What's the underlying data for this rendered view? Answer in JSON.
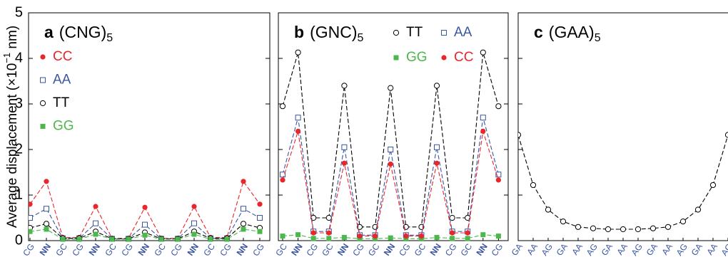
{
  "chart_data": [
    {
      "type": "line",
      "panel": "a",
      "title": "(CNG)",
      "title_sub": "5",
      "ylabel": "Average displacement (×10",
      "ylabel_sup": "−1",
      "ylabel_end": " nm)",
      "categories": [
        "CG",
        "NN",
        "GC",
        "CG",
        "NN",
        "GC",
        "CG",
        "NN",
        "GC",
        "CG",
        "NN",
        "GC",
        "CG",
        "NN",
        "CG"
      ],
      "ylim": [
        0,
        5
      ],
      "yticks": [
        0,
        1,
        2,
        3,
        4,
        5
      ],
      "series": [
        {
          "name": "CC",
          "color": "#e8262b",
          "marker": "circle-filled",
          "values": [
            0.8,
            1.3,
            0.07,
            0.07,
            0.75,
            0.05,
            0.05,
            0.73,
            0.05,
            0.05,
            0.75,
            0.07,
            0.07,
            1.3,
            0.8
          ]
        },
        {
          "name": "AA",
          "color": "#3a55a4",
          "marker": "square-open",
          "values": [
            0.5,
            0.7,
            0.05,
            0.05,
            0.38,
            0.04,
            0.04,
            0.35,
            0.04,
            0.04,
            0.38,
            0.05,
            0.05,
            0.7,
            0.5
          ]
        },
        {
          "name": "TT",
          "color": "#000000",
          "marker": "circle-open",
          "values": [
            0.28,
            0.37,
            0.05,
            0.05,
            0.2,
            0.04,
            0.04,
            0.18,
            0.04,
            0.04,
            0.2,
            0.05,
            0.05,
            0.37,
            0.28
          ]
        },
        {
          "name": "GG",
          "color": "#4cb84c",
          "marker": "square-filled",
          "values": [
            0.2,
            0.25,
            0.03,
            0.03,
            0.14,
            0.03,
            0.03,
            0.12,
            0.03,
            0.03,
            0.14,
            0.03,
            0.03,
            0.25,
            0.2
          ]
        }
      ]
    },
    {
      "type": "line",
      "panel": "b",
      "title": "(GNC)",
      "title_sub": "5",
      "categories": [
        "GC",
        "NN",
        "CG",
        "GC",
        "NN",
        "CG",
        "GC",
        "NN",
        "CG",
        "GC",
        "NN",
        "CG",
        "GC",
        "NN",
        "CG"
      ],
      "ylim": [
        0,
        5
      ],
      "yticks": [
        0,
        1,
        2,
        3,
        4,
        5
      ],
      "series": [
        {
          "name": "TT",
          "color": "#000000",
          "marker": "circle-open",
          "values": [
            2.95,
            4.13,
            0.5,
            0.5,
            3.4,
            0.3,
            0.3,
            3.35,
            0.3,
            0.3,
            3.4,
            0.5,
            0.5,
            4.13,
            2.95
          ]
        },
        {
          "name": "AA",
          "color": "#3a55a4",
          "marker": "square-open",
          "values": [
            1.45,
            2.7,
            0.2,
            0.2,
            2.05,
            0.12,
            0.12,
            2.0,
            0.12,
            0.12,
            2.05,
            0.2,
            0.2,
            2.7,
            1.45
          ]
        },
        {
          "name": "GG",
          "color": "#4cb84c",
          "marker": "square-filled",
          "values": [
            0.1,
            0.13,
            0.05,
            0.05,
            0.07,
            0.04,
            0.04,
            0.06,
            0.04,
            0.04,
            0.07,
            0.05,
            0.05,
            0.13,
            0.1
          ]
        },
        {
          "name": "CC",
          "color": "#e8262b",
          "marker": "circle-filled",
          "values": [
            1.33,
            2.4,
            0.17,
            0.17,
            1.7,
            0.1,
            0.1,
            1.68,
            0.1,
            0.1,
            1.7,
            0.17,
            0.17,
            2.4,
            1.33
          ]
        }
      ]
    },
    {
      "type": "line",
      "panel": "c",
      "title": "(GAA)",
      "title_sub": "5",
      "categories": [
        "GA",
        "AA",
        "AG",
        "GA",
        "AA",
        "AG",
        "GA",
        "AA",
        "AG",
        "GA",
        "AA",
        "AG",
        "GA",
        "AA",
        "AG"
      ],
      "ylim": [
        0,
        5
      ],
      "yticks": [
        0,
        1,
        2,
        3,
        4,
        5
      ],
      "series": [
        {
          "color": "#000000",
          "marker": "circle-open",
          "values": [
            2.32,
            1.22,
            0.68,
            0.42,
            0.3,
            0.27,
            0.25,
            0.25,
            0.25,
            0.27,
            0.3,
            0.42,
            0.68,
            1.22,
            2.32
          ]
        }
      ]
    }
  ]
}
